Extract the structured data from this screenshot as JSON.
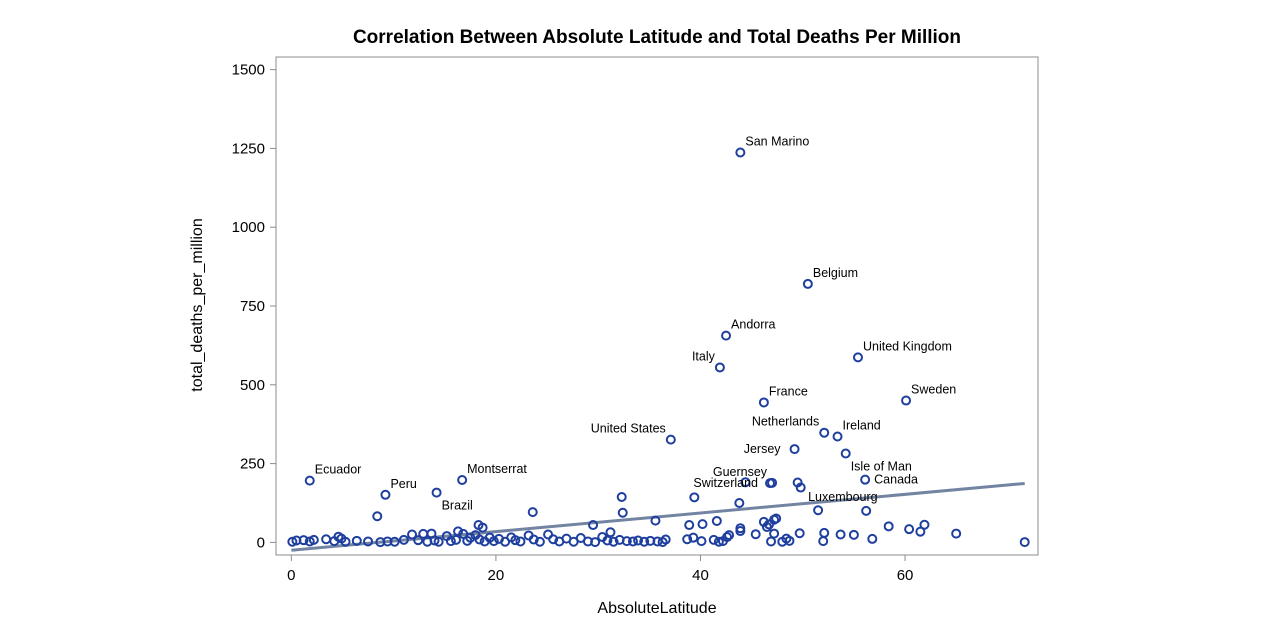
{
  "chart_data": {
    "type": "scatter",
    "title": "Correlation Between Absolute Latitude and Total Deaths Per Million",
    "xlabel": "AbsoluteLatitude",
    "ylabel": "total_deaths_per_million",
    "xlim": [
      -1.5,
      73
    ],
    "ylim": [
      -40,
      1540
    ],
    "xticks": [
      0,
      20,
      40,
      60
    ],
    "yticks": [
      0,
      250,
      500,
      750,
      1000,
      1250,
      1500
    ],
    "grid": false,
    "legend": "none",
    "marker_color": "#1f3f9f",
    "fit_line_color": "#7384a3",
    "fit_line": {
      "x": [
        0,
        71.7
      ],
      "y": [
        -25,
        187
      ]
    },
    "labeled_points": [
      {
        "label": "San Marino",
        "x": 43.9,
        "y": 1237,
        "pos": "above-right"
      },
      {
        "label": "Belgium",
        "x": 50.5,
        "y": 820,
        "pos": "above-right"
      },
      {
        "label": "Andorra",
        "x": 42.5,
        "y": 656,
        "pos": "above-right"
      },
      {
        "label": "United Kingdom",
        "x": 55.4,
        "y": 587,
        "pos": "above-right"
      },
      {
        "label": "Italy",
        "x": 41.9,
        "y": 555,
        "pos": "above-left"
      },
      {
        "label": "France",
        "x": 46.2,
        "y": 444,
        "pos": "above-right"
      },
      {
        "label": "Sweden",
        "x": 60.1,
        "y": 450,
        "pos": "above-right"
      },
      {
        "label": "United States",
        "x": 37.1,
        "y": 326,
        "pos": "above-left"
      },
      {
        "label": "Netherlands",
        "x": 52.1,
        "y": 348,
        "pos": "above-left"
      },
      {
        "label": "Ireland",
        "x": 53.4,
        "y": 336,
        "pos": "above-right"
      },
      {
        "label": "Jersey",
        "x": 49.2,
        "y": 296,
        "pos": "left"
      },
      {
        "label": "Isle of Man",
        "x": 54.2,
        "y": 282,
        "pos": "below-right"
      },
      {
        "label": "Guernsey",
        "x": 47.0,
        "y": 189,
        "pos": "above-left"
      },
      {
        "label": "Canada",
        "x": 56.1,
        "y": 199,
        "pos": "right"
      },
      {
        "label": "Switzerland",
        "x": 46.8,
        "y": 188,
        "pos": "left-far"
      },
      {
        "label": "Luxembourg",
        "x": 51.5,
        "y": 102,
        "pos": "above-right-close"
      },
      {
        "label": "Ecuador",
        "x": 1.8,
        "y": 196,
        "pos": "above-right"
      },
      {
        "label": "Peru",
        "x": 9.2,
        "y": 151,
        "pos": "above-right"
      },
      {
        "label": "Montserrat",
        "x": 16.7,
        "y": 198,
        "pos": "above-right"
      },
      {
        "label": "Brazil",
        "x": 14.2,
        "y": 158,
        "pos": "below-right"
      }
    ],
    "points": [
      {
        "x": 44.4,
        "y": 191
      },
      {
        "x": 49.5,
        "y": 190
      },
      {
        "x": 49.8,
        "y": 174
      },
      {
        "x": 32.3,
        "y": 144
      },
      {
        "x": 39.4,
        "y": 143
      },
      {
        "x": 43.8,
        "y": 125
      },
      {
        "x": 23.6,
        "y": 96
      },
      {
        "x": 32.4,
        "y": 94
      },
      {
        "x": 56.2,
        "y": 100
      },
      {
        "x": 8.4,
        "y": 83
      },
      {
        "x": 35.6,
        "y": 69
      },
      {
        "x": 41.6,
        "y": 68
      },
      {
        "x": 47.4,
        "y": 76
      },
      {
        "x": 47.2,
        "y": 72
      },
      {
        "x": 46.2,
        "y": 65
      },
      {
        "x": 29.5,
        "y": 55
      },
      {
        "x": 38.9,
        "y": 55
      },
      {
        "x": 40.2,
        "y": 58
      },
      {
        "x": 46.7,
        "y": 57
      },
      {
        "x": 58.4,
        "y": 51
      },
      {
        "x": 61.9,
        "y": 56
      },
      {
        "x": 46.5,
        "y": 49
      },
      {
        "x": 43.9,
        "y": 45
      },
      {
        "x": 60.4,
        "y": 42
      },
      {
        "x": 61.5,
        "y": 34
      },
      {
        "x": 18.3,
        "y": 55
      },
      {
        "x": 18.7,
        "y": 47
      },
      {
        "x": 16.3,
        "y": 35
      },
      {
        "x": 31.2,
        "y": 32
      },
      {
        "x": 43.9,
        "y": 36
      },
      {
        "x": 45.4,
        "y": 26
      },
      {
        "x": 47.2,
        "y": 28
      },
      {
        "x": 49.7,
        "y": 29
      },
      {
        "x": 52.1,
        "y": 30
      },
      {
        "x": 53.7,
        "y": 25
      },
      {
        "x": 55.0,
        "y": 24
      },
      {
        "x": 65.0,
        "y": 28
      },
      {
        "x": 36.6,
        "y": 9
      },
      {
        "x": 38.7,
        "y": 10
      },
      {
        "x": 39.3,
        "y": 15
      },
      {
        "x": 40.1,
        "y": 4
      },
      {
        "x": 41.3,
        "y": 8
      },
      {
        "x": 41.8,
        "y": 2
      },
      {
        "x": 42.2,
        "y": 4
      },
      {
        "x": 42.6,
        "y": 17
      },
      {
        "x": 42.8,
        "y": 23
      },
      {
        "x": 48.0,
        "y": 2
      },
      {
        "x": 48.4,
        "y": 12
      },
      {
        "x": 48.7,
        "y": 5
      },
      {
        "x": 46.9,
        "y": 3
      },
      {
        "x": 52.0,
        "y": 4
      },
      {
        "x": 56.8,
        "y": 11
      },
      {
        "x": 71.7,
        "y": 1
      },
      {
        "x": 0.1,
        "y": 2
      },
      {
        "x": 0.5,
        "y": 6
      },
      {
        "x": 1.2,
        "y": 7
      },
      {
        "x": 1.8,
        "y": 3
      },
      {
        "x": 2.2,
        "y": 8
      },
      {
        "x": 3.4,
        "y": 10
      },
      {
        "x": 4.2,
        "y": 4
      },
      {
        "x": 4.6,
        "y": 18
      },
      {
        "x": 4.9,
        "y": 12
      },
      {
        "x": 5.3,
        "y": 2
      },
      {
        "x": 6.4,
        "y": 5
      },
      {
        "x": 7.5,
        "y": 3
      },
      {
        "x": 8.7,
        "y": 1
      },
      {
        "x": 9.4,
        "y": 3
      },
      {
        "x": 10.1,
        "y": 2
      },
      {
        "x": 11.0,
        "y": 8
      },
      {
        "x": 11.8,
        "y": 25
      },
      {
        "x": 12.4,
        "y": 7
      },
      {
        "x": 12.9,
        "y": 27
      },
      {
        "x": 13.3,
        "y": 2
      },
      {
        "x": 13.7,
        "y": 28
      },
      {
        "x": 14.0,
        "y": 6
      },
      {
        "x": 14.4,
        "y": 2
      },
      {
        "x": 15.2,
        "y": 20
      },
      {
        "x": 15.6,
        "y": 4
      },
      {
        "x": 16.1,
        "y": 8
      },
      {
        "x": 16.8,
        "y": 27
      },
      {
        "x": 17.2,
        "y": 5
      },
      {
        "x": 17.5,
        "y": 15
      },
      {
        "x": 18.0,
        "y": 23
      },
      {
        "x": 18.4,
        "y": 9
      },
      {
        "x": 18.9,
        "y": 3
      },
      {
        "x": 19.4,
        "y": 15
      },
      {
        "x": 19.8,
        "y": 4
      },
      {
        "x": 20.3,
        "y": 11
      },
      {
        "x": 20.9,
        "y": 2
      },
      {
        "x": 21.5,
        "y": 16
      },
      {
        "x": 21.9,
        "y": 7
      },
      {
        "x": 22.4,
        "y": 3
      },
      {
        "x": 23.2,
        "y": 22
      },
      {
        "x": 23.7,
        "y": 9
      },
      {
        "x": 24.3,
        "y": 2
      },
      {
        "x": 25.1,
        "y": 25
      },
      {
        "x": 25.6,
        "y": 10
      },
      {
        "x": 26.2,
        "y": 3
      },
      {
        "x": 26.9,
        "y": 12
      },
      {
        "x": 27.6,
        "y": 2
      },
      {
        "x": 28.3,
        "y": 14
      },
      {
        "x": 29.0,
        "y": 3
      },
      {
        "x": 29.7,
        "y": 1
      },
      {
        "x": 30.4,
        "y": 17
      },
      {
        "x": 30.9,
        "y": 6
      },
      {
        "x": 31.5,
        "y": 2
      },
      {
        "x": 32.1,
        "y": 8
      },
      {
        "x": 32.8,
        "y": 4
      },
      {
        "x": 33.4,
        "y": 3
      },
      {
        "x": 33.9,
        "y": 6
      },
      {
        "x": 34.5,
        "y": 2
      },
      {
        "x": 35.1,
        "y": 5
      },
      {
        "x": 35.8,
        "y": 3
      },
      {
        "x": 36.3,
        "y": 1
      }
    ]
  }
}
